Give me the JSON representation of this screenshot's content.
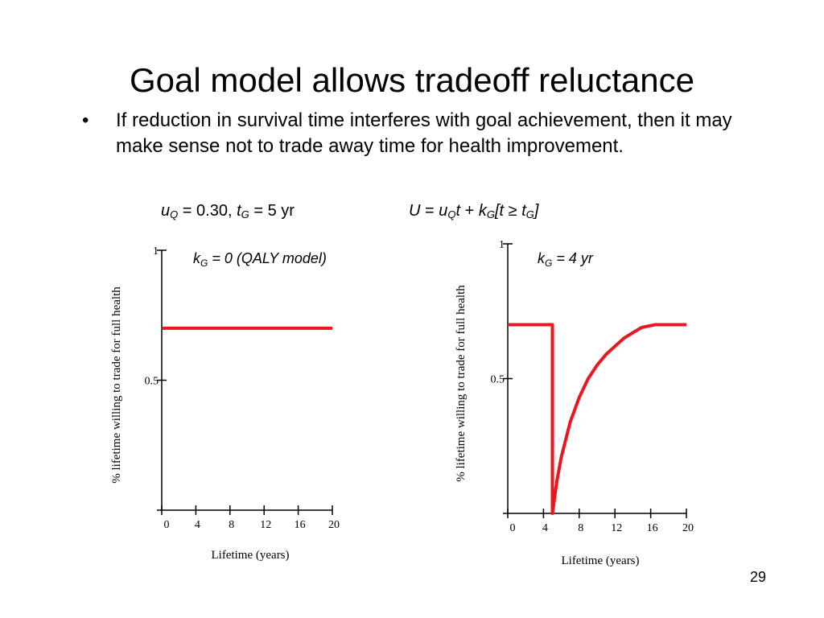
{
  "slide": {
    "title": "Goal model allows tradeoff reluctance",
    "bullet_marker": "•",
    "bullet_text": "If reduction in survival time interferes with goal achievement, then it may make sense not to trade away time for health improvement.",
    "formula_left": {
      "uQ_main": "u",
      "uQ_sub": "Q",
      "uQ_val": " = 0.30, ",
      "tG_main": "t",
      "tG_sub": "G",
      "tG_val": " = 5 yr"
    },
    "formula_right": {
      "U": "U",
      "eq": " = ",
      "u": "u",
      "u_sub": "Q",
      "t1": "t",
      "plus": " + ",
      "k": "k",
      "k_sub": "G",
      "bracket_open": "[",
      "t2": "t",
      "geq": " ≥ ",
      "t3": "t",
      "t3_sub": "G",
      "bracket_close": "]"
    },
    "page_number": "29"
  },
  "chart_data": [
    {
      "type": "line",
      "title_main": "k",
      "title_sub": "G",
      "title_rest": " = 0 (QALY model)",
      "xlabel": "Lifetime (years)",
      "ylabel": "% lifetime willing to trade for full health",
      "xlim": [
        0,
        20
      ],
      "ylim": [
        0,
        1
      ],
      "xticks": [
        0,
        4,
        8,
        12,
        16,
        20
      ],
      "ytick_labels": [
        {
          "value": 0.5,
          "label": "0.5"
        },
        {
          "value": 1,
          "label": "1"
        }
      ],
      "line_color": "#e8181e",
      "series": [
        {
          "x": [
            0,
            20
          ],
          "y": [
            0.7,
            0.7
          ]
        }
      ]
    },
    {
      "type": "line",
      "title_main": "k",
      "title_sub": "G",
      "title_rest": " = 4 yr",
      "xlabel": "Lifetime (years)",
      "ylabel": "% lifetime willing to trade for full health",
      "xlim": [
        0,
        20
      ],
      "ylim": [
        0,
        1
      ],
      "xticks": [
        0,
        4,
        8,
        12,
        16,
        20
      ],
      "ytick_labels": [
        {
          "value": 0.5,
          "label": "0.5"
        },
        {
          "value": 1,
          "label": "1"
        }
      ],
      "line_color": "#e8181e",
      "series": [
        {
          "x": [
            0,
            5,
            5,
            5,
            5.5,
            6,
            7,
            8,
            9,
            10,
            11,
            12,
            13,
            14,
            15,
            16.5,
            20
          ],
          "y": [
            0.7,
            0.7,
            0.0,
            0.0,
            0.12,
            0.21,
            0.34,
            0.43,
            0.5,
            0.55,
            0.59,
            0.62,
            0.65,
            0.67,
            0.69,
            0.7,
            0.7
          ]
        }
      ]
    }
  ]
}
